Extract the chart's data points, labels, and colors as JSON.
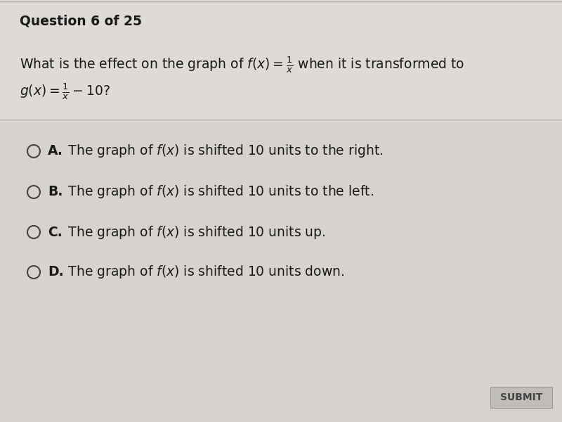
{
  "title": "Question 6 of 25",
  "question_line1": "What is the effect on the graph of $f(x) = \\frac{1}{x}$ when it is transformed to",
  "question_line2": "$g(x) = \\frac{1}{x} - 10$?",
  "options": [
    {
      "label": "A.",
      "text": "  The graph of $f(x)$ is shifted 10 units to the right."
    },
    {
      "label": "B.",
      "text": "  The graph of $f(x)$ is shifted 10 units to the left."
    },
    {
      "label": "C.",
      "text": "  The graph of $f(x)$ is shifted 10 units up."
    },
    {
      "label": "D.",
      "text": "  The graph of $f(x)$ is shifted 10 units down."
    }
  ],
  "bg_color": "#d6d2ce",
  "top_bg_color": "#dedad6",
  "text_color": "#1a1a1a",
  "submit_bg": "#c0bcb8",
  "submit_text": "SUBMIT",
  "separator_color": "#b0acaa",
  "circle_color": "#444444",
  "title_fontsize": 13.5,
  "question_fontsize": 13.5,
  "option_fontsize": 13.5,
  "submit_fontsize": 10
}
